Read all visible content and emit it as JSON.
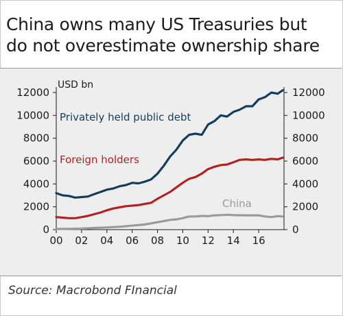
{
  "title": "China owns many US Treasuries but\ndo not overestimate ownership share",
  "source": "Source: Macrobond FInancial",
  "chart_data": {
    "type": "line",
    "unit_label": "USD bn",
    "ylim": [
      0,
      12000
    ],
    "y_ticks": [
      0,
      2000,
      4000,
      6000,
      8000,
      10000,
      12000
    ],
    "y_tick_labels": [
      "0",
      "2000",
      "4000",
      "6000",
      "8000",
      "10000",
      "12000"
    ],
    "xlim": [
      2000,
      2018
    ],
    "x_ticks": [
      2000,
      2002,
      2004,
      2006,
      2008,
      2010,
      2012,
      2014,
      2016
    ],
    "x_tick_labels": [
      "00",
      "02",
      "04",
      "06",
      "08",
      "10",
      "12",
      "14",
      "16"
    ],
    "grid": false,
    "series": [
      {
        "name": "Privately held public debt",
        "color": "#123d5c",
        "x": [
          2000,
          2000.5,
          2001,
          2001.5,
          2002,
          2002.5,
          2003,
          2003.5,
          2004,
          2004.5,
          2005,
          2005.5,
          2006,
          2006.5,
          2007,
          2007.5,
          2008,
          2008.5,
          2009,
          2009.5,
          2010,
          2010.5,
          2011,
          2011.5,
          2012,
          2012.5,
          2013,
          2013.5,
          2014,
          2014.5,
          2015,
          2015.5,
          2016,
          2016.5,
          2017,
          2017.5,
          2017.9
        ],
        "values": [
          3200,
          3000,
          2950,
          2800,
          2850,
          2900,
          3100,
          3300,
          3500,
          3600,
          3800,
          3900,
          4100,
          4050,
          4200,
          4400,
          4900,
          5600,
          6400,
          7000,
          7800,
          8300,
          8400,
          8300,
          9200,
          9500,
          10000,
          9900,
          10300,
          10500,
          10800,
          10800,
          11400,
          11600,
          12000,
          11900,
          12200
        ]
      },
      {
        "name": "Foreign holders",
        "color": "#b22222",
        "x": [
          2000,
          2000.5,
          2001,
          2001.5,
          2002,
          2002.5,
          2003,
          2003.5,
          2004,
          2004.5,
          2005,
          2005.5,
          2006,
          2006.5,
          2007,
          2007.5,
          2008,
          2008.5,
          2009,
          2009.5,
          2010,
          2010.5,
          2011,
          2011.5,
          2012,
          2012.5,
          2013,
          2013.5,
          2014,
          2014.5,
          2015,
          2015.5,
          2016,
          2016.5,
          2017,
          2017.5,
          2017.9
        ],
        "values": [
          1100,
          1050,
          1000,
          1000,
          1100,
          1200,
          1350,
          1500,
          1700,
          1850,
          1950,
          2050,
          2100,
          2150,
          2250,
          2350,
          2700,
          3000,
          3300,
          3700,
          4100,
          4450,
          4600,
          4900,
          5300,
          5500,
          5650,
          5700,
          5900,
          6100,
          6150,
          6100,
          6150,
          6100,
          6200,
          6150,
          6300
        ]
      },
      {
        "name": "China",
        "color": "#9a9a9a",
        "x": [
          2000,
          2001,
          2002,
          2003,
          2004,
          2005,
          2006,
          2007,
          2008,
          2009,
          2009.5,
          2010,
          2010.5,
          2011,
          2011.5,
          2012,
          2012.5,
          2013,
          2013.5,
          2014,
          2014.5,
          2015,
          2015.5,
          2016,
          2016.5,
          2017,
          2017.5,
          2017.9
        ],
        "values": [
          60,
          70,
          90,
          150,
          190,
          250,
          350,
          450,
          650,
          850,
          900,
          1000,
          1150,
          1150,
          1200,
          1180,
          1250,
          1270,
          1300,
          1270,
          1260,
          1250,
          1250,
          1250,
          1150,
          1100,
          1180,
          1150
        ]
      }
    ]
  }
}
